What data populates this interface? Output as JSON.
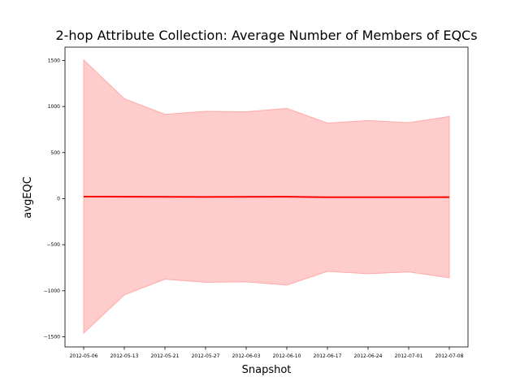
{
  "chart_data": {
    "type": "line",
    "title": "2-hop Attribute Collection: Average Number of  Members of EQCs",
    "xlabel": "Snapshot",
    "ylabel": "avgEQC",
    "categories": [
      "2012-05-06",
      "2012-05-13",
      "2012-05-21",
      "2012-05-27",
      "2012-06-03",
      "2012-06-10",
      "2012-06-17",
      "2012-06-24",
      "2012-07-01",
      "2012-07-08"
    ],
    "series": [
      {
        "values": [
          22,
          21,
          20,
          19,
          20,
          21,
          15,
          15,
          15,
          16
        ],
        "band_upper": [
          1505,
          1085,
          915,
          948,
          943,
          980,
          820,
          848,
          825,
          892
        ],
        "band_lower": [
          -1460,
          -1045,
          -875,
          -908,
          -903,
          -938,
          -790,
          -815,
          -795,
          -860
        ],
        "line_color": "#ff0000",
        "band_color": "#ffcccc",
        "band_edge_color": "#ffaaaa"
      }
    ],
    "yticks": [
      -1500,
      -1000,
      -500,
      0,
      500,
      1000,
      1500
    ],
    "ylim": [
      -1610,
      1645
    ],
    "grid": false,
    "legend": "none"
  }
}
